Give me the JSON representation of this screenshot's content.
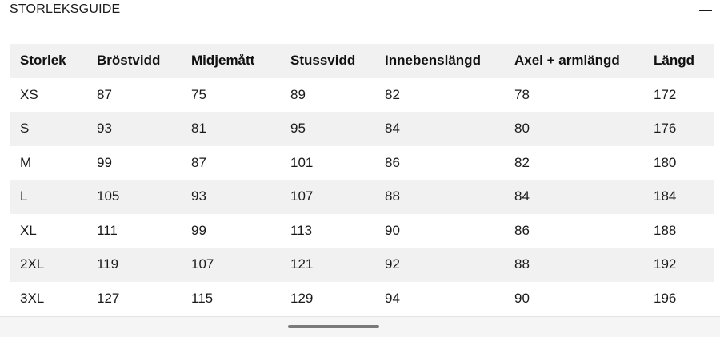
{
  "header": {
    "title": "STORLEKSGUIDE",
    "collapse_icon": "minus-icon"
  },
  "table": {
    "columns": [
      "Storlek",
      "Bröstvidd",
      "Midjemått",
      "Stussvidd",
      "Innebenslängd",
      "Axel + armlängd",
      "Längd"
    ],
    "rows": [
      [
        "XS",
        "87",
        "75",
        "89",
        "82",
        "78",
        "172"
      ],
      [
        "S",
        "93",
        "81",
        "95",
        "84",
        "80",
        "176"
      ],
      [
        "M",
        "99",
        "87",
        "101",
        "86",
        "82",
        "180"
      ],
      [
        "L",
        "105",
        "93",
        "107",
        "88",
        "84",
        "184"
      ],
      [
        "XL",
        "111",
        "99",
        "113",
        "90",
        "86",
        "188"
      ],
      [
        "2XL",
        "119",
        "107",
        "121",
        "92",
        "88",
        "192"
      ],
      [
        "3XL",
        "127",
        "115",
        "129",
        "94",
        "90",
        "196"
      ]
    ]
  },
  "colors": {
    "row_shade": "#f1f1f1",
    "row_plain": "#ffffff",
    "text": "#1a1a1a"
  }
}
